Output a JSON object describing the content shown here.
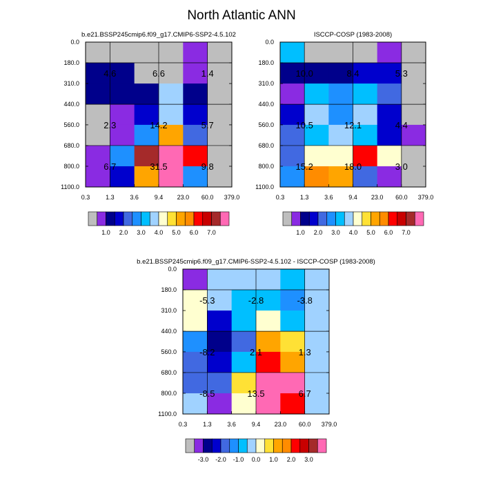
{
  "title": "North Atlantic ANN",
  "colors": {
    "fill_scale_1": [
      "#bebebe",
      "#8a2be2",
      "#00008b",
      "#0000cd",
      "#4169e1",
      "#1e90ff",
      "#00bfff",
      "#a0d2ff",
      "#ffffd0",
      "#ffe135",
      "#ffa500",
      "#ff8c00",
      "#ff0000",
      "#c80000",
      "#a52a2a",
      "#ff69b4"
    ],
    "fill_scale_2": [
      "#bebebe",
      "#8a2be2",
      "#00008b",
      "#0000cd",
      "#4169e1",
      "#1e90ff",
      "#00bfff",
      "#a0d2ff",
      "#ffffd0",
      "#ffe135",
      "#ffa500",
      "#ff8c00",
      "#ff0000",
      "#c80000",
      "#a52a2a",
      "#ff69b4"
    ]
  },
  "chart_data": [
    {
      "type": "heatmap",
      "title": "b.e21.BSSP245cmip6.f09_g17.CMIP6-SSP2-4.5.102",
      "x_edges": [
        "0.3",
        "1.3",
        "3.6",
        "9.4",
        "23.0",
        "60.0",
        "379.0"
      ],
      "y_edges": [
        "0.0",
        "180.0",
        "310.0",
        "440.0",
        "560.0",
        "680.0",
        "800.0",
        "1100.0"
      ],
      "cells": [
        [
          0,
          0,
          0,
          0,
          1,
          0
        ],
        [
          2,
          2,
          0,
          0,
          1,
          0
        ],
        [
          2,
          2,
          2,
          7,
          2,
          0
        ],
        [
          0,
          1,
          3,
          7,
          3,
          0
        ],
        [
          0,
          1,
          5,
          10,
          4,
          0
        ],
        [
          1,
          5,
          14,
          15,
          12,
          0
        ],
        [
          1,
          3,
          10,
          15,
          5,
          0
        ]
      ],
      "labels": [
        {
          "text": "4.6",
          "col": 0.5,
          "row": 1.5
        },
        {
          "text": "6.6",
          "col": 2.5,
          "row": 1.5
        },
        {
          "text": "1.4",
          "col": 4.5,
          "row": 1.5
        },
        {
          "text": "2.3",
          "col": 0.5,
          "row": 4.0
        },
        {
          "text": "14.2",
          "col": 2.5,
          "row": 4.0
        },
        {
          "text": "5.7",
          "col": 4.5,
          "row": 4.0
        },
        {
          "text": "6.7",
          "col": 0.5,
          "row": 6.0
        },
        {
          "text": "31.5",
          "col": 2.5,
          "row": 6.0
        },
        {
          "text": "9.8",
          "col": 4.5,
          "row": 6.0
        }
      ],
      "colorbar_ticks": [
        "1.0",
        "2.0",
        "3.0",
        "4.0",
        "5.0",
        "6.0",
        "7.0"
      ]
    },
    {
      "type": "heatmap",
      "title": "ISCCP-COSP (1983-2008)",
      "x_edges": [
        "0.3",
        "1.3",
        "3.6",
        "9.4",
        "23.0",
        "60.0",
        "379.0"
      ],
      "y_edges": [
        "0.0",
        "180.0",
        "310.0",
        "440.0",
        "560.0",
        "680.0",
        "800.0",
        "1100.0"
      ],
      "cells": [
        [
          6,
          0,
          0,
          0,
          1,
          0
        ],
        [
          2,
          2,
          2,
          3,
          3,
          0
        ],
        [
          1,
          6,
          5,
          6,
          4,
          0
        ],
        [
          3,
          7,
          5,
          7,
          3,
          0
        ],
        [
          4,
          6,
          7,
          6,
          3,
          1
        ],
        [
          4,
          8,
          8,
          12,
          8,
          0
        ],
        [
          5,
          11,
          10,
          4,
          1,
          0
        ]
      ],
      "labels": [
        {
          "text": "10.0",
          "col": 0.5,
          "row": 1.5
        },
        {
          "text": "8.4",
          "col": 2.5,
          "row": 1.5
        },
        {
          "text": "5.3",
          "col": 4.5,
          "row": 1.5
        },
        {
          "text": "10.5",
          "col": 0.5,
          "row": 4.0
        },
        {
          "text": "12.1",
          "col": 2.5,
          "row": 4.0
        },
        {
          "text": "4.4",
          "col": 4.5,
          "row": 4.0
        },
        {
          "text": "15.2",
          "col": 0.5,
          "row": 6.0
        },
        {
          "text": "18.0",
          "col": 2.5,
          "row": 6.0
        },
        {
          "text": "3.0",
          "col": 4.5,
          "row": 6.0
        }
      ],
      "colorbar_ticks": [
        "1.0",
        "2.0",
        "3.0",
        "4.0",
        "5.0",
        "6.0",
        "7.0"
      ]
    },
    {
      "type": "heatmap",
      "title": "b.e21.BSSP245cmip6.f09_g17.CMIP6-SSP2-4.5.102 - ISCCP-COSP (1983-2008)",
      "x_edges": [
        "0.3",
        "1.3",
        "3.6",
        "9.4",
        "23.0",
        "60.0",
        "379.0"
      ],
      "y_edges": [
        "0.0",
        "180.0",
        "310.0",
        "440.0",
        "560.0",
        "680.0",
        "800.0",
        "1100.0"
      ],
      "cells": [
        [
          1,
          7,
          7,
          7,
          6,
          7
        ],
        [
          8,
          7,
          6,
          6,
          5,
          7
        ],
        [
          8,
          3,
          6,
          8,
          6,
          7
        ],
        [
          5,
          2,
          4,
          10,
          9,
          7
        ],
        [
          4,
          3,
          6,
          12,
          10,
          7
        ],
        [
          4,
          4,
          9,
          15,
          15,
          7
        ],
        [
          7,
          1,
          8,
          15,
          12,
          7
        ]
      ],
      "labels": [
        {
          "text": "-5.3",
          "col": 0.5,
          "row": 1.5
        },
        {
          "text": "-2.8",
          "col": 2.5,
          "row": 1.5
        },
        {
          "text": "-3.8",
          "col": 4.5,
          "row": 1.5
        },
        {
          "text": "-8.2",
          "col": 0.5,
          "row": 4.0
        },
        {
          "text": "2.1",
          "col": 2.5,
          "row": 4.0
        },
        {
          "text": "1.3",
          "col": 4.5,
          "row": 4.0
        },
        {
          "text": "-8.5",
          "col": 0.5,
          "row": 6.0
        },
        {
          "text": "13.5",
          "col": 2.5,
          "row": 6.0
        },
        {
          "text": "6.7",
          "col": 4.5,
          "row": 6.0
        }
      ],
      "colorbar_ticks": [
        "-3.0",
        "-2.0",
        "-1.0",
        "0.0",
        "1.0",
        "2.0",
        "3.0"
      ]
    }
  ]
}
